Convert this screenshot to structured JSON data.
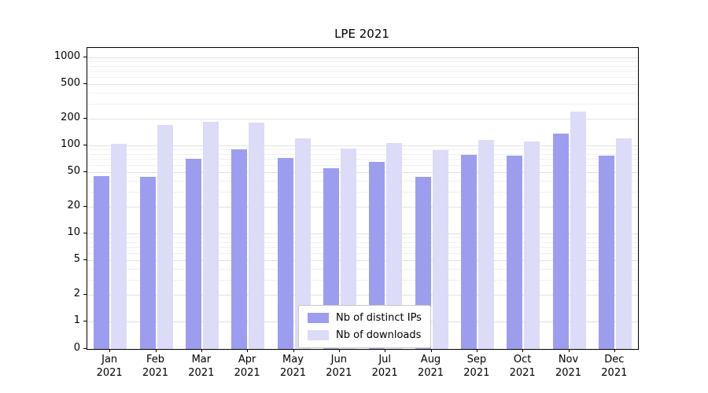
{
  "chart_data": {
    "type": "bar",
    "title": "LPE 2021",
    "yscale": "symlog",
    "grid": true,
    "legend_position": "lower center",
    "categories": [
      "Jan 2021",
      "Feb 2021",
      "Mar 2021",
      "Apr 2021",
      "May 2021",
      "Jun 2021",
      "Jul 2021",
      "Aug 2021",
      "Sep 2021",
      "Oct 2021",
      "Nov 2021",
      "Dec 2021"
    ],
    "series": [
      {
        "name": "Nb of distinct IPs",
        "color": "#9d9df0",
        "values": [
          45,
          44,
          70,
          90,
          72,
          55,
          65,
          44,
          78,
          76,
          135,
          76
        ]
      },
      {
        "name": "Nb of downloads",
        "color": "#dcdcf8",
        "values": [
          105,
          170,
          185,
          180,
          120,
          93,
          107,
          88,
          115,
          112,
          240,
          120
        ]
      }
    ],
    "yticks": [
      1000,
      500,
      200,
      100,
      50,
      20,
      10,
      5,
      2,
      1,
      0
    ],
    "ylim": [
      0,
      1300
    ]
  }
}
